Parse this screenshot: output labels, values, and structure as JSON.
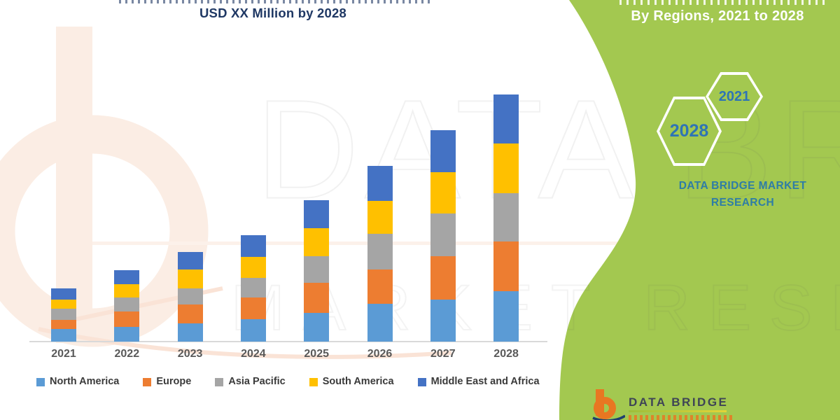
{
  "title": {
    "line2": "USD XX Million by 2028",
    "note": "first title line is cut off at top edge of image (unreadable)"
  },
  "side_panel": {
    "heading": "By Regions, 2021 to 2028",
    "hex_small_year": "2021",
    "hex_large_year": "2028",
    "brand_caption": "DATA BRIDGE MARKET RESEARCH"
  },
  "watermark": {
    "line1": "DATA BRIDGE",
    "line2": "MARKET RESEARCH"
  },
  "footer_logo": {
    "text": "DATA BRIDGE"
  },
  "colors": {
    "title_navy": "#1F3864",
    "axis_label_gray": "#595959",
    "legend_text": "#3A3A3A",
    "axis_line": "#D9D9D9",
    "panel_green": "#A3C850",
    "hex_year_blue": "#2E74B5",
    "brand_teal": "#2E7DA6",
    "logo_orange": "#E87722",
    "logo_navy": "#1F3F6E"
  },
  "chart_data": {
    "type": "bar",
    "stacked": true,
    "title": "USD XX Million by 2028",
    "xlabel": "",
    "ylabel": "",
    "y_axis_visible": false,
    "grid": false,
    "legend_position": "bottom",
    "units": "relative height units (actual values masked as 'USD XX Million' in source)",
    "categories": [
      "2021",
      "2022",
      "2023",
      "2024",
      "2025",
      "2026",
      "2027",
      "2028"
    ],
    "series": [
      {
        "name": "North America",
        "color": "#5B9BD5",
        "values": [
          18,
          21,
          26,
          32,
          41,
          54,
          60,
          72
        ]
      },
      {
        "name": "Europe",
        "color": "#ED7D31",
        "values": [
          13,
          22,
          27,
          31,
          43,
          49,
          62,
          71
        ]
      },
      {
        "name": "Asia Pacific",
        "color": "#A5A5A5",
        "values": [
          16,
          20,
          23,
          28,
          38,
          51,
          61,
          69
        ]
      },
      {
        "name": "South America",
        "color": "#FFC000",
        "values": [
          13,
          19,
          27,
          30,
          40,
          47,
          59,
          71
        ]
      },
      {
        "name": "Middle East and Africa",
        "color": "#4472C4",
        "values": [
          16,
          20,
          25,
          31,
          40,
          50,
          60,
          70
        ]
      }
    ],
    "totals": [
      76,
      102,
      128,
      152,
      202,
      251,
      302,
      353
    ]
  }
}
